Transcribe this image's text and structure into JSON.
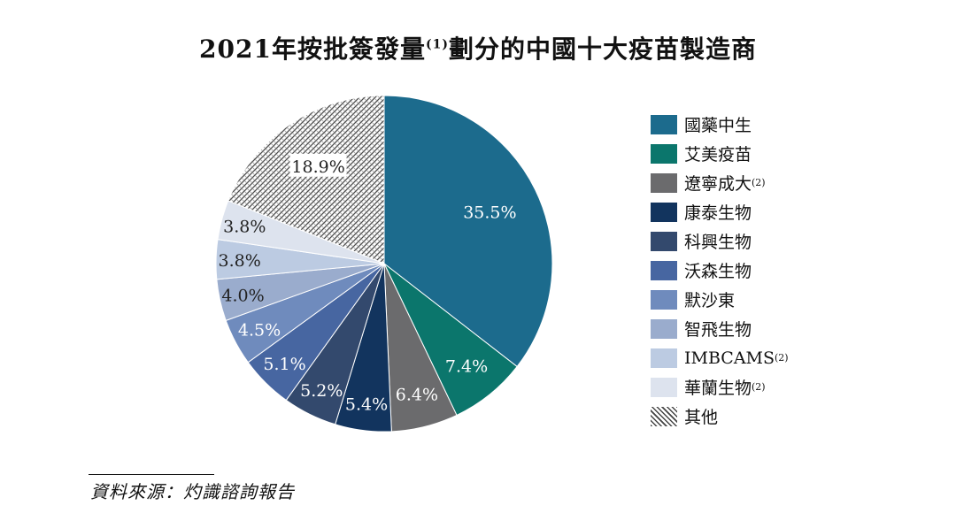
{
  "title": "2021年按批簽發量",
  "title_note": "(1)",
  "title_suffix": "劃分的中國十大疫苗製造商",
  "source": "資料來源：灼識諮詢報告",
  "chart_data": {
    "type": "pie",
    "slices": [
      {
        "name": "國藥中生",
        "note": "",
        "value": 35.5,
        "label": "35.5%",
        "color": "#1c6b8d",
        "label_color": "#ffffff"
      },
      {
        "name": "艾美疫苗",
        "note": "",
        "value": 7.4,
        "label": "7.4%",
        "color": "#0b766c",
        "label_color": "#ffffff"
      },
      {
        "name": "遼寧成大",
        "note": "(2)",
        "value": 6.4,
        "label": "6.4%",
        "color": "#6b6b6d",
        "label_color": "#ffffff"
      },
      {
        "name": "康泰生物",
        "note": "",
        "value": 5.4,
        "label": "5.4%",
        "color": "#12345e",
        "label_color": "#ffffff"
      },
      {
        "name": "科興生物",
        "note": "",
        "value": 5.2,
        "label": "5.2%",
        "color": "#33496d",
        "label_color": "#ffffff"
      },
      {
        "name": "沃森生物",
        "note": "",
        "value": 5.1,
        "label": "5.1%",
        "color": "#4766a1",
        "label_color": "#ffffff"
      },
      {
        "name": "默沙東",
        "note": "",
        "value": 4.5,
        "label": "4.5%",
        "color": "#6f8bbd",
        "label_color": "#ffffff"
      },
      {
        "name": "智飛生物",
        "note": "",
        "value": 4.0,
        "label": "4.0%",
        "color": "#9aaccd",
        "label_color": "#222222"
      },
      {
        "name": "IMBCAMS",
        "note": "(2)",
        "value": 3.8,
        "label": "3.8%",
        "color": "#bccbe2",
        "label_color": "#222222"
      },
      {
        "name": "華蘭生物",
        "note": "(2)",
        "value": 3.8,
        "label": "3.8%",
        "color": "#dde3ee",
        "label_color": "#222222"
      },
      {
        "name": "其他",
        "note": "",
        "value": 18.9,
        "label": "18.9%",
        "color": "hatch",
        "label_color": "#222222"
      }
    ]
  }
}
